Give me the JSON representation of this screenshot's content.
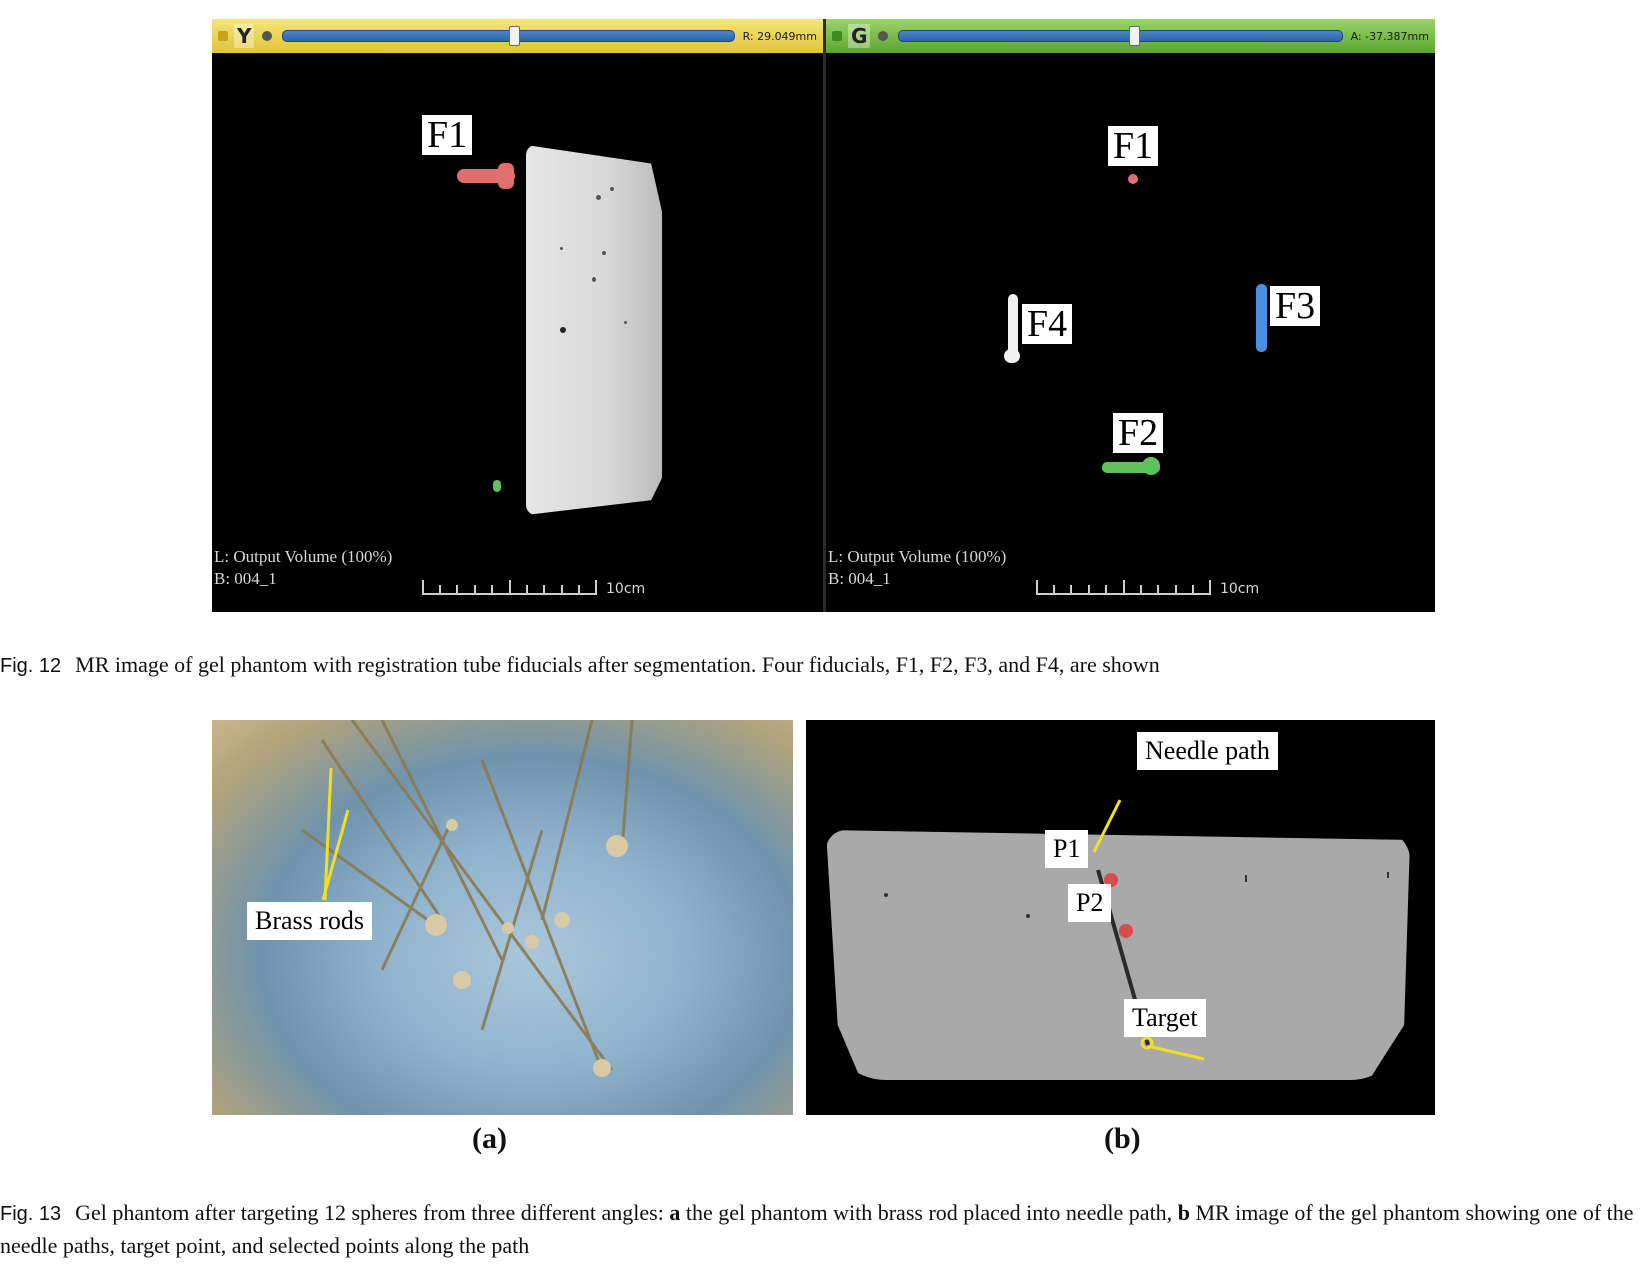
{
  "figure12": {
    "left_viewer": {
      "letter": "Y",
      "readout": "R: 29.049mm",
      "slider_value": 0.5,
      "fiducials": [
        {
          "label": "F1"
        }
      ],
      "vol_line1": "L: Output Volume (100%)",
      "vol_line2": "B: 004_1",
      "scale_label": "10cm"
    },
    "right_viewer": {
      "letter": "G",
      "readout": "A: -37.387mm",
      "slider_value": 0.5,
      "fiducials": [
        {
          "label": "F1"
        },
        {
          "label": "F4"
        },
        {
          "label": "F3"
        },
        {
          "label": "F2"
        }
      ],
      "vol_line1": "L: Output Volume (100%)",
      "vol_line2": "B: 004_1",
      "scale_label": "10cm"
    },
    "caption_number": "Fig. 12",
    "caption_text": "MR image of gel phantom with registration tube fiducials after segmentation. Four fiducials, F1, F2, F3, and F4, are shown"
  },
  "figure13": {
    "panel_a": {
      "callout": "Brass rods",
      "sub_label": "(a)"
    },
    "panel_b": {
      "callouts": {
        "needle_path": "Needle path",
        "p1": "P1",
        "p2": "P2",
        "target": "Target"
      },
      "sub_label": "(b)"
    },
    "caption_number": "Fig. 13",
    "caption_text_1": "Gel phantom after targeting 12 spheres from three different angles: ",
    "caption_a": "a",
    "caption_text_2": " the gel phantom with brass rod placed into needle path, ",
    "caption_b": "b",
    "caption_text_3": " MR image of the gel phantom showing one of the needle paths, target point, and selected points along the path"
  },
  "colors": {
    "fiducial_red": "#e07070",
    "fiducial_white": "#f0f0f0",
    "fiducial_blue": "#4a8fe0",
    "fiducial_green": "#5fc25a",
    "annotation_yellow": "#f0e020",
    "marker_red": "#d94c4c"
  }
}
